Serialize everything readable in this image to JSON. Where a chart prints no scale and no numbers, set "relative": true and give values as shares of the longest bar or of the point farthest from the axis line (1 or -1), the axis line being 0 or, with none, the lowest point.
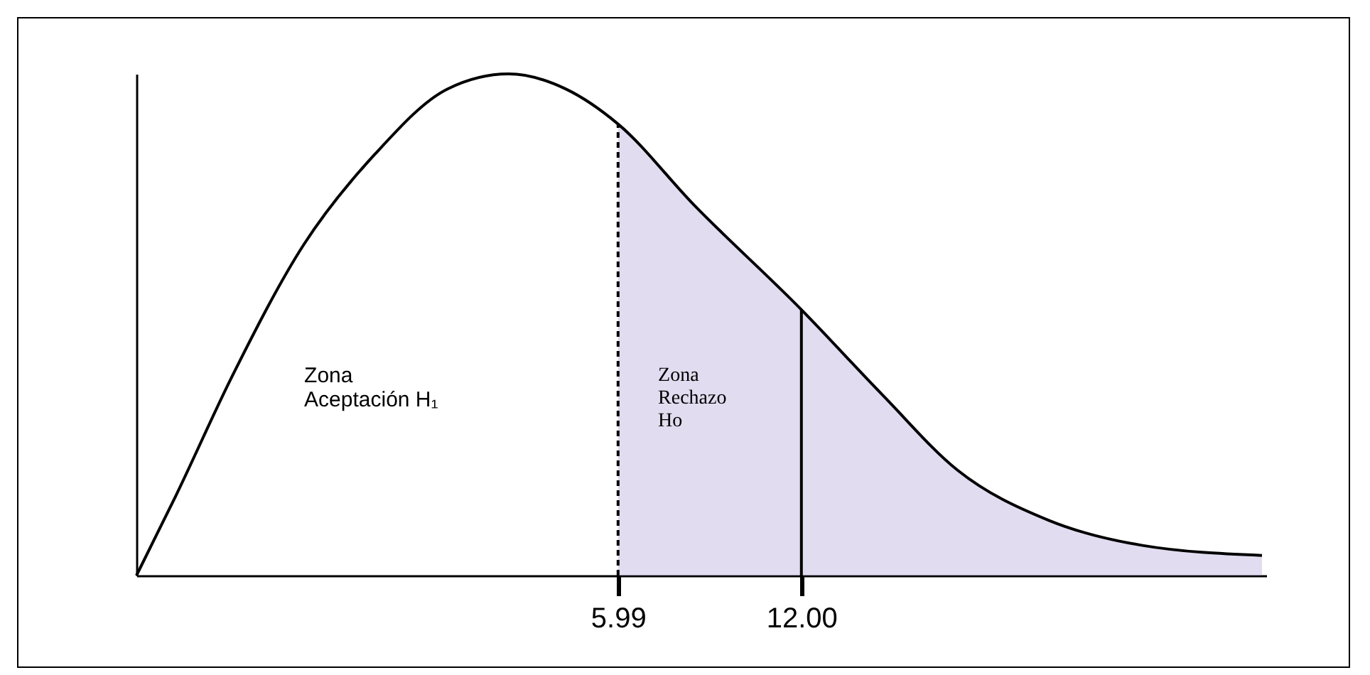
{
  "chart_data": {
    "type": "line",
    "relative": true,
    "tick_labels": "x",
    "x": [
      -9.8,
      -8.5,
      -6.64,
      -4.31,
      -1.98,
      0.4,
      2.4,
      4.27,
      5.99,
      8.46,
      12.0,
      14.66,
      17.12,
      20.11,
      23.18,
      27.1
    ],
    "series": [
      {
        "color": "#000000",
        "values": [
          0,
          0.16,
          0.4,
          0.66,
          0.84,
          0.97,
          1.0,
          0.97,
          0.9,
          0.74,
          0.53,
          0.36,
          0.21,
          0.11,
          0.06,
          0.04
        ]
      },
      {
        "type": "area",
        "color": "#b4a7d6",
        "x": [
          5.99,
          8.46,
          12.0,
          14.66,
          17.12,
          20.11,
          23.18,
          27.1
        ],
        "values": [
          0.9,
          0.74,
          0.53,
          0.36,
          0.21,
          0.11,
          0.06,
          0.04
        ]
      }
    ],
    "xlim": [
      -9.8,
      27.24
    ],
    "xticks": [
      5.99,
      {
        "value": 12,
        "label": "12.00"
      }
    ],
    "ref_lines": [
      {
        "axis": "x",
        "value": 5.99,
        "line_style": "dashed",
        "color": "#000000"
      },
      {
        "axis": "x",
        "value": 12,
        "line_style": "solid",
        "color": "#000000"
      }
    ],
    "annotations": [
      "Zona\nAceptación H₁",
      "Zona\nRechazo\nHo"
    ]
  }
}
